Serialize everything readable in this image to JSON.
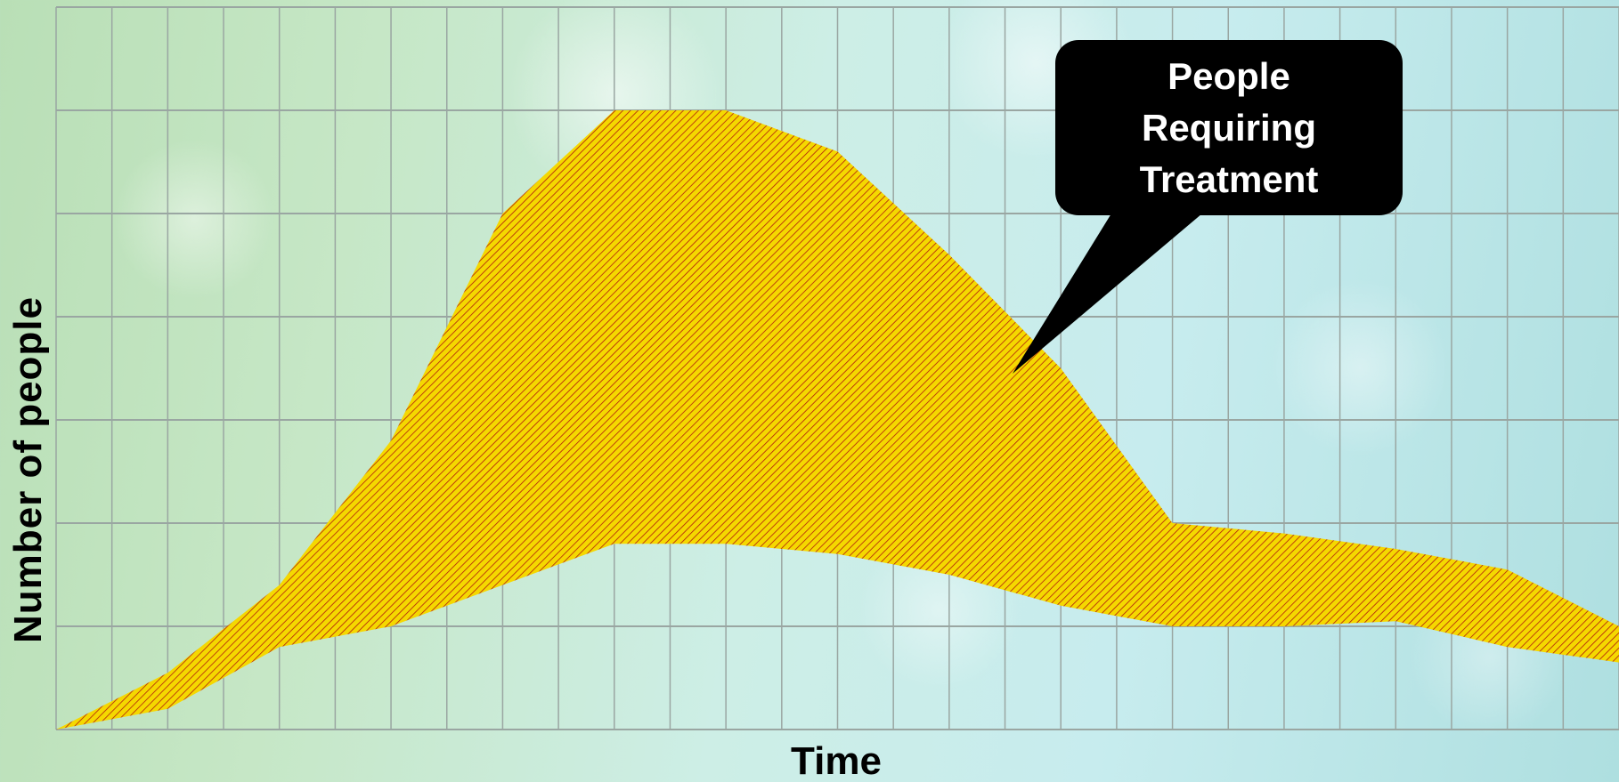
{
  "chart_data": {
    "type": "area",
    "title": "",
    "xlabel": "Time",
    "ylabel": "Number of people",
    "x_tick_labels": "none",
    "y_tick_labels": "none",
    "grid": true,
    "vertical_gridlines": 28,
    "horizontal_gridlines": 7,
    "xlim": [
      0,
      28
    ],
    "ylim": [
      0,
      7
    ],
    "series": [
      {
        "name": "People Requiring Treatment",
        "x": [
          0,
          2,
          4,
          6,
          8,
          10,
          12,
          14,
          16,
          18,
          20,
          22,
          24,
          26,
          28
        ],
        "upper": [
          0.0,
          0.55,
          1.4,
          2.8,
          5.0,
          6.0,
          6.0,
          5.6,
          4.6,
          3.5,
          2.0,
          1.9,
          1.75,
          1.55,
          1.0
        ],
        "lower": [
          0.0,
          0.2,
          0.8,
          1.0,
          1.4,
          1.8,
          1.8,
          1.7,
          1.5,
          1.2,
          1.0,
          1.0,
          1.05,
          0.8,
          0.65
        ]
      }
    ],
    "colors": {
      "fill": "#f5d800",
      "hatch": "#b01c0c",
      "grid": "#9aa6a2"
    },
    "annotations": [
      {
        "name": "callout",
        "text_lines": [
          "People",
          "Requiring",
          "Treatment"
        ]
      }
    ]
  }
}
